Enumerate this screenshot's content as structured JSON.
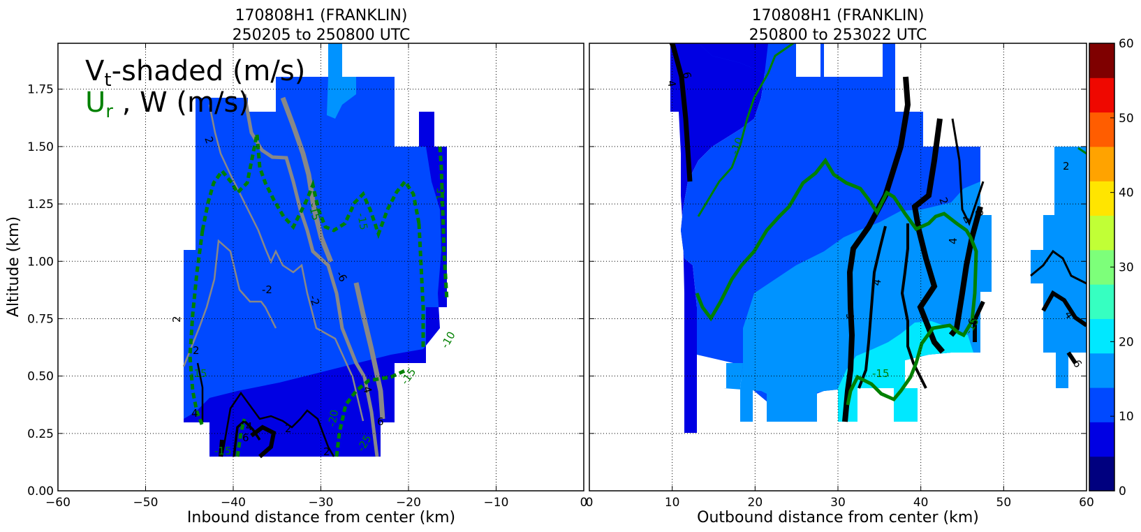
{
  "chart_data": [
    {
      "type": "heatmap",
      "panel": "inbound",
      "title": "170808H1 (FRANKLIN)",
      "subtitle": "250205 to 250800 UTC",
      "xlabel": "Inbound distance from center (km)",
      "ylabel": "Altitude (km)",
      "xlim": [
        -60,
        0
      ],
      "ylim": [
        0,
        1.95
      ],
      "xticks": [
        "−60",
        "−50",
        "−40",
        "−30",
        "−20",
        "−10",
        "0"
      ],
      "yticks": [
        "0.00",
        "0.25",
        "0.50",
        "0.75",
        "1.00",
        "1.25",
        "1.50",
        "1.75"
      ],
      "grid": true,
      "legend": {
        "vt_label_main": "V",
        "vt_label_sub": "t",
        "vt_label_rest": "-shaded (m/s)",
        "ur_label_main": "U",
        "ur_label_sub": "r",
        "w_label": " , W (m/s)",
        "ur_color": "#008000",
        "position": "top-left"
      },
      "contour_labels": {
        "w": [
          "2",
          "2",
          "2",
          "4",
          "6",
          "4",
          "2",
          "2",
          "4",
          "6",
          "-2",
          "-2",
          "-6"
        ],
        "ur": [
          "-15",
          "-15",
          "-15",
          "-20",
          "-25",
          "-15",
          "-10",
          "-15",
          "-15"
        ]
      },
      "vt_range": [
        9,
        19
      ]
    },
    {
      "type": "heatmap",
      "panel": "outbound",
      "title": "170808H1 (FRANKLIN)",
      "subtitle": "250800 to 253022 UTC",
      "xlabel": "Outbound distance from center (km)",
      "xlim": [
        0,
        60
      ],
      "ylim": [
        0,
        1.95
      ],
      "xticks": [
        "0",
        "10",
        "20",
        "30",
        "40",
        "50",
        "60"
      ],
      "grid": true,
      "contour_labels": {
        "w": [
          "4",
          "6",
          "4",
          "2",
          "6",
          "4",
          "6",
          "6",
          "4",
          "2",
          "4",
          "6"
        ],
        "ur": [
          "-10",
          "-15",
          "-15"
        ]
      },
      "vt_range": [
        9,
        23
      ]
    }
  ],
  "colorbar": {
    "ticks": [
      "0",
      "10",
      "20",
      "30",
      "40",
      "50",
      "60"
    ],
    "range": [
      0,
      60
    ],
    "colors": [
      "#00007f",
      "#0000e3",
      "#0049ff",
      "#0093ff",
      "#00e8ff",
      "#36ffc1",
      "#7dff7a",
      "#c1ff36",
      "#ffe500",
      "#ffa300",
      "#ff5d00",
      "#ef0800",
      "#7f0000"
    ]
  }
}
